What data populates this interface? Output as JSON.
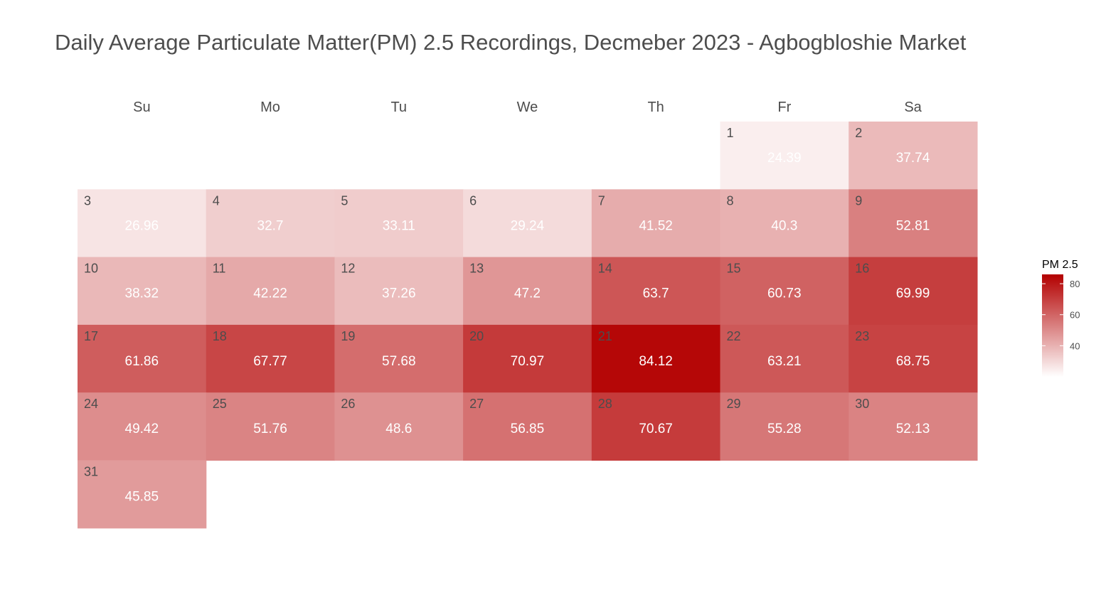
{
  "chart_data": {
    "type": "heatmap",
    "subtype": "calendar",
    "title": "Daily Average Particulate Matter(PM) 2.5 Recordings, Decmeber 2023 - Agbogbloshie Market",
    "weekdays": [
      "Su",
      "Mo",
      "Tu",
      "We",
      "Th",
      "Fr",
      "Sa"
    ],
    "first_weekday_index": 5,
    "days": [
      1,
      2,
      3,
      4,
      5,
      6,
      7,
      8,
      9,
      10,
      11,
      12,
      13,
      14,
      15,
      16,
      17,
      18,
      19,
      20,
      21,
      22,
      23,
      24,
      25,
      26,
      27,
      28,
      29,
      30,
      31
    ],
    "labels": [
      "24.39",
      "37.74",
      "26.96",
      "32.7",
      "33.11",
      "29.24",
      "41.52",
      "40.3",
      "52.81",
      "38.32",
      "42.22",
      "37.26",
      "47.2",
      "63.7",
      "60.73",
      "69.99",
      "61.86",
      "67.77",
      "57.68",
      "70.97",
      "84.12",
      "63.21",
      "68.75",
      "49.42",
      "51.76",
      "48.6",
      "56.85",
      "70.67",
      "55.28",
      "52.13",
      "45.85"
    ],
    "values": [
      24.39,
      37.74,
      26.96,
      32.7,
      33.11,
      29.24,
      41.52,
      40.3,
      52.81,
      38.32,
      42.22,
      37.26,
      47.2,
      63.7,
      60.73,
      69.99,
      61.86,
      67.77,
      57.68,
      70.97,
      84.12,
      63.21,
      68.75,
      49.42,
      51.76,
      48.6,
      56.85,
      70.67,
      55.28,
      52.13,
      45.85
    ],
    "legend": {
      "title": "PM 2.5",
      "position": "right",
      "ticks": [
        40,
        60,
        80
      ],
      "tick_labels": [
        "40",
        "60",
        "80"
      ],
      "color_low": "#ffffff",
      "color_high": "#b30000",
      "range": [
        20,
        86
      ]
    }
  }
}
